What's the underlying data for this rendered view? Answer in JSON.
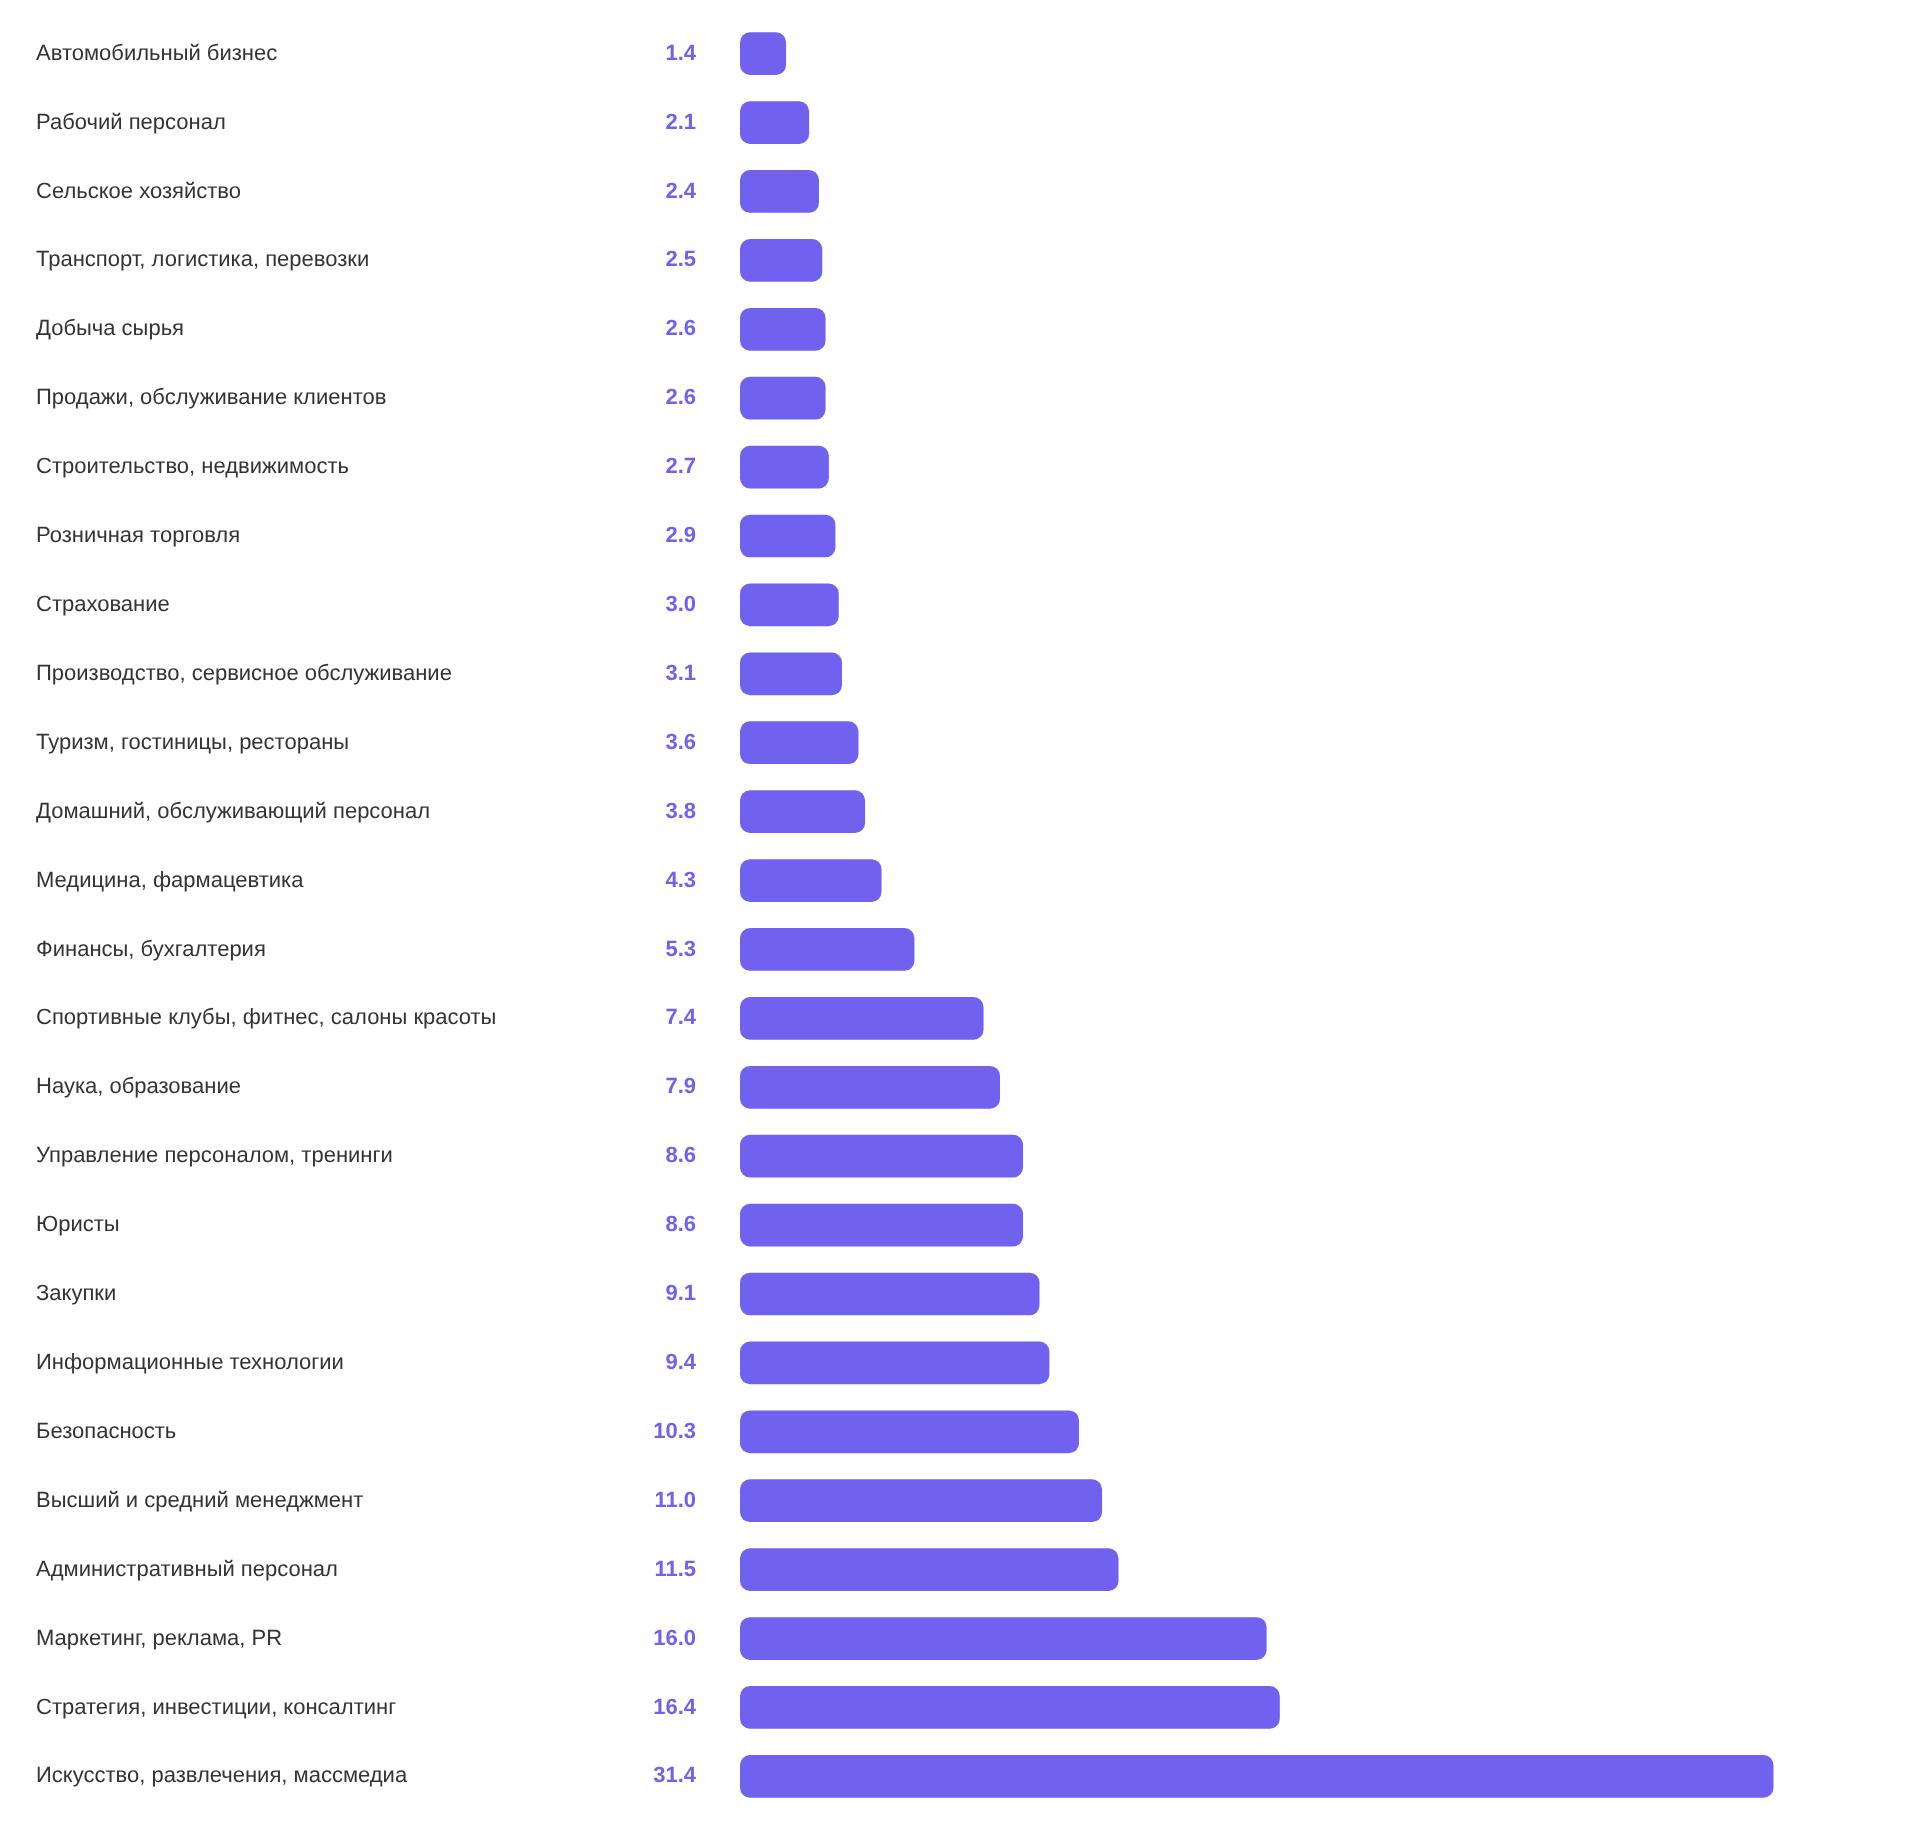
{
  "chart_data": {
    "type": "bar",
    "orientation": "horizontal",
    "color": "#7161ef",
    "legend": false,
    "grid": false,
    "tick_labels": "y",
    "categories": [
      "Автомобильный бизнес",
      "Рабочий персонал",
      "Сельское хозяйство",
      "Транспорт, логистика, перевозки",
      "Добыча сырья",
      "Продажи, обслуживание клиентов",
      "Строительство, недвижимость",
      "Розничная торговля",
      "Страхование",
      "Производство, сервисное обслуживание",
      "Туризм, гостиницы, рестораны",
      "Домашний, обслуживающий персонал",
      "Медицина, фармацевтика",
      "Финансы, бухгалтерия",
      "Спортивные клубы, фитнес, салоны красоты",
      "Наука, образование",
      "Управление персоналом, тренинги",
      "Юристы",
      "Закупки",
      "Информационные технологии",
      "Безопасность",
      "Высший и средний менеджмент",
      "Административный персонал",
      "Маркетинг, реклама, PR",
      "Стратегия, инвестиции, консалтинг",
      "Искусство, развлечения, массмедиа"
    ],
    "values": [
      1.4,
      2.1,
      2.4,
      2.5,
      2.6,
      2.6,
      2.7,
      2.9,
      3.0,
      3.1,
      3.6,
      3.8,
      4.3,
      5.3,
      7.4,
      7.9,
      8.6,
      8.6,
      9.1,
      9.4,
      10.3,
      11.0,
      11.5,
      16.0,
      16.4,
      31.4
    ],
    "value_labels": [
      "1.4",
      "2.1",
      "2.4",
      "2.5",
      "2.6",
      "2.6",
      "2.7",
      "2.9",
      "3.0",
      "3.1",
      "3.6",
      "3.8",
      "4.3",
      "5.3",
      "7.4",
      "7.9",
      "8.6",
      "8.6",
      "9.1",
      "9.4",
      "10.3",
      "11.0",
      "11.5",
      "16.0",
      "16.4",
      "31.4"
    ]
  }
}
